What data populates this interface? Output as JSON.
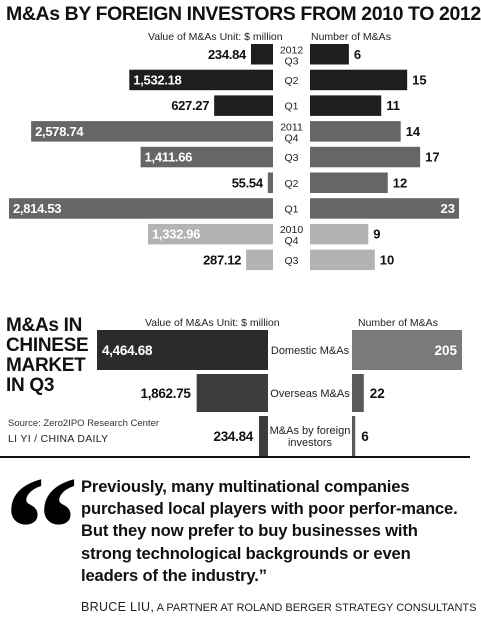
{
  "main_title": "M&As BY FOREIGN INVESTORS FROM 2010 TO 2012",
  "sub_title": [
    "M&As IN",
    "CHINESE",
    "MARKET",
    "IN Q3"
  ],
  "source": "Source: Zero2IPO Research Center",
  "credit": "LI YI / CHINA DAILY",
  "quote": "Previously, many multinational companies purchased local players with poor perfor-mance. But they now prefer to buy businesses with strong technological backgrounds or even leaders of the industry.”",
  "quote_mark": "“",
  "attribution": {
    "name": "BRUCE LIU,",
    "role": " A PARTNER AT ROLAND BERGER STRATEGY CONSULTANTS"
  },
  "colors": {
    "dark": "#1e1e1e",
    "mid": "#666666",
    "light": "#b3b3b3"
  },
  "chart_data": [
    {
      "type": "bar",
      "layout": "butterfly",
      "left_header": "Value of M&As Unit: $ million",
      "right_header": "Number of M&As",
      "categories": [
        [
          "2012",
          "Q3"
        ],
        [
          "",
          "Q2"
        ],
        [
          "",
          "Q1"
        ],
        [
          "2011",
          "Q4"
        ],
        [
          "",
          "Q3"
        ],
        [
          "",
          "Q2"
        ],
        [
          "",
          "Q1"
        ],
        [
          "2010",
          "Q4"
        ],
        [
          "",
          "Q3"
        ]
      ],
      "series": [
        {
          "values": [
            234.84,
            1532.18,
            627.27,
            2578.74,
            1411.66,
            55.54,
            2814.53,
            1332.96,
            287.12
          ],
          "labels": [
            "234.84",
            "1,532.18",
            "627.27",
            "2,578.74",
            "1,411.66",
            "55.54",
            "2,814.53",
            "1,332.96",
            "287.12"
          ]
        },
        {
          "values": [
            6,
            15,
            11,
            14,
            17,
            12,
            23,
            9,
            10
          ],
          "labels": [
            "6",
            "15",
            "11",
            "14",
            "17",
            "12",
            "23",
            "9",
            "10"
          ]
        }
      ],
      "shades": [
        "dark",
        "dark",
        "dark",
        "mid",
        "mid",
        "mid",
        "mid",
        "light",
        "light"
      ]
    },
    {
      "type": "bar",
      "layout": "butterfly",
      "left_header": "Value of M&As Unit: $ million",
      "right_header": "Number of M&As",
      "categories": [
        [
          "Domestic M&As"
        ],
        [
          "Overseas M&As"
        ],
        [
          "M&As by foreign",
          "investors"
        ]
      ],
      "series": [
        {
          "values": [
            4464.68,
            1862.75,
            234.84
          ],
          "labels": [
            "4,464.68",
            "1,862.75",
            "234.84"
          ]
        },
        {
          "values": [
            205,
            22,
            6
          ],
          "labels": [
            "205",
            "22",
            "6"
          ]
        }
      ]
    }
  ]
}
